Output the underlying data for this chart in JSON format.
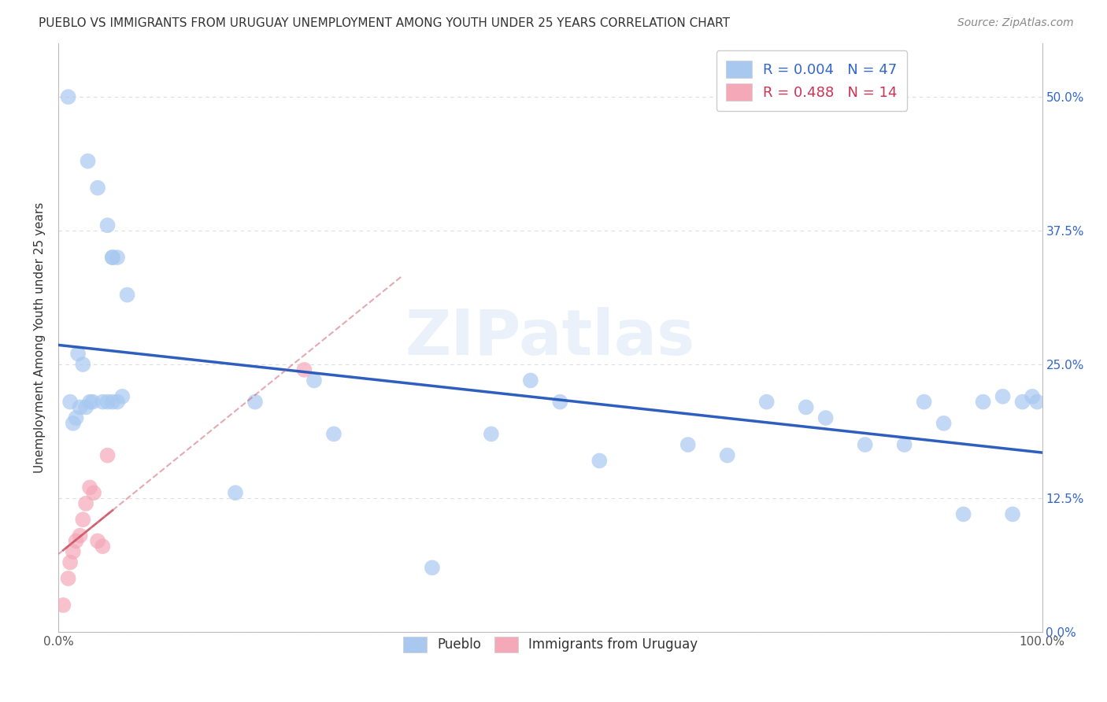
{
  "title": "PUEBLO VS IMMIGRANTS FROM URUGUAY UNEMPLOYMENT AMONG YOUTH UNDER 25 YEARS CORRELATION CHART",
  "source": "Source: ZipAtlas.com",
  "ylabel": "Unemployment Among Youth under 25 years",
  "R_pueblo": 0.004,
  "N_pueblo": 47,
  "R_uruguay": 0.488,
  "N_uruguay": 14,
  "pueblo_color": "#a8c8f0",
  "uruguay_color": "#f4a8b8",
  "trendline_pueblo_color": "#2255bb",
  "trendline_uruguay_color": "#cc5566",
  "pueblo_x": [
    0.01,
    0.03,
    0.04,
    0.05,
    0.055,
    0.02,
    0.025,
    0.06,
    0.065,
    0.035,
    0.045,
    0.028,
    0.032,
    0.055,
    0.07,
    0.055,
    0.06,
    0.012,
    0.015,
    0.018,
    0.022,
    0.05,
    0.18,
    0.2,
    0.26,
    0.28,
    0.38,
    0.44,
    0.51,
    0.55,
    0.48,
    0.64,
    0.68,
    0.72,
    0.76,
    0.78,
    0.82,
    0.86,
    0.88,
    0.9,
    0.92,
    0.94,
    0.96,
    0.97,
    0.98,
    0.99,
    0.995
  ],
  "pueblo_y": [
    0.5,
    0.44,
    0.415,
    0.38,
    0.35,
    0.26,
    0.25,
    0.215,
    0.22,
    0.215,
    0.215,
    0.21,
    0.215,
    0.215,
    0.315,
    0.35,
    0.35,
    0.215,
    0.195,
    0.2,
    0.21,
    0.215,
    0.13,
    0.215,
    0.235,
    0.185,
    0.06,
    0.185,
    0.215,
    0.16,
    0.235,
    0.175,
    0.165,
    0.215,
    0.21,
    0.2,
    0.175,
    0.175,
    0.215,
    0.195,
    0.11,
    0.215,
    0.22,
    0.11,
    0.215,
    0.22,
    0.215
  ],
  "uruguay_x": [
    0.005,
    0.01,
    0.012,
    0.015,
    0.018,
    0.022,
    0.025,
    0.028,
    0.032,
    0.036,
    0.04,
    0.045,
    0.05,
    0.25
  ],
  "uruguay_y": [
    0.025,
    0.05,
    0.065,
    0.075,
    0.085,
    0.09,
    0.105,
    0.12,
    0.135,
    0.13,
    0.085,
    0.08,
    0.165,
    0.245
  ],
  "xlim": [
    0.0,
    1.0
  ],
  "ylim": [
    0.0,
    0.55
  ],
  "yticks": [
    0.0,
    0.125,
    0.25,
    0.375,
    0.5
  ],
  "ytick_labels": [
    "0.0%",
    "12.5%",
    "25.0%",
    "37.5%",
    "50.0%"
  ],
  "xtick_labels_shown": [
    "0.0%",
    "100.0%"
  ],
  "background_color": "#ffffff",
  "grid_color": "#dddddd",
  "watermark": "ZIPatlas"
}
